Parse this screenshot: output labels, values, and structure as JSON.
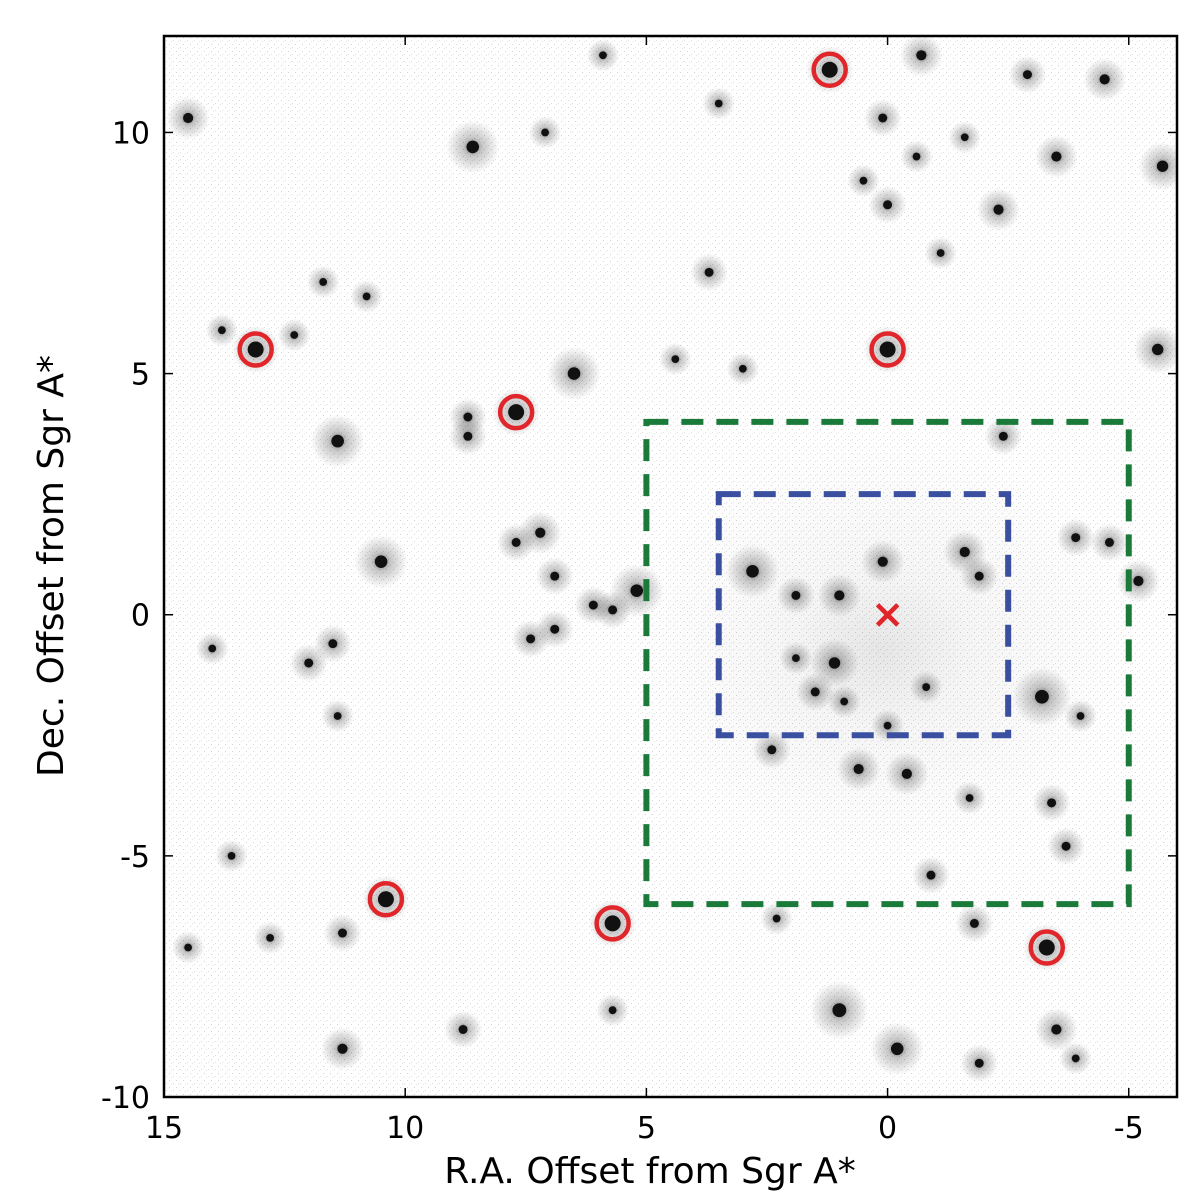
{
  "chart_data": {
    "type": "scatter",
    "title": "",
    "xlabel": "R.A. Offset from Sgr A*",
    "ylabel": "Dec. Offset from Sgr A*",
    "xlim": [
      15,
      -6
    ],
    "ylim": [
      -10,
      12
    ],
    "x_ticks": [
      15,
      10,
      5,
      0,
      -5
    ],
    "y_ticks": [
      -10,
      -5,
      0,
      5,
      10
    ],
    "x_tick_labels": [
      "15",
      "10",
      "5",
      "0",
      "-5"
    ],
    "y_tick_labels": [
      "-10",
      "-5",
      "0",
      "5",
      "10"
    ],
    "grid": false,
    "colors": {
      "circle": "#e0262b",
      "marker": "#e0262b",
      "green_box": "#1a7a3a",
      "blue_box": "#3a4fa0",
      "star": "#111111"
    },
    "circled_stars": [
      {
        "x": 13.1,
        "y": 5.5
      },
      {
        "x": 7.7,
        "y": 4.2
      },
      {
        "x": 1.2,
        "y": 11.3
      },
      {
        "x": 0.0,
        "y": 5.5
      },
      {
        "x": 10.4,
        "y": -5.9
      },
      {
        "x": 5.7,
        "y": -6.4
      },
      {
        "x": -3.3,
        "y": -6.9
      }
    ],
    "sgr_a_marker": {
      "x": 0.0,
      "y": 0.0,
      "symbol": "×"
    },
    "green_box": {
      "x1": 5.0,
      "x2": -5.0,
      "y1": -6.0,
      "y2": 4.0
    },
    "blue_box": {
      "x1": 3.5,
      "x2": -2.5,
      "y1": -2.5,
      "y2": 2.5
    },
    "stars": [
      {
        "x": 14.5,
        "y": 10.3,
        "m": 0.6
      },
      {
        "x": 8.6,
        "y": 9.7,
        "m": 0.8
      },
      {
        "x": 7.1,
        "y": 10.0,
        "m": 0.4
      },
      {
        "x": 5.9,
        "y": 11.6,
        "m": 0.4
      },
      {
        "x": 3.5,
        "y": 10.6,
        "m": 0.4
      },
      {
        "x": 0.1,
        "y": 10.3,
        "m": 0.5
      },
      {
        "x": -0.6,
        "y": 9.5,
        "m": 0.4
      },
      {
        "x": -1.6,
        "y": 9.9,
        "m": 0.4
      },
      {
        "x": -3.5,
        "y": 9.5,
        "m": 0.6
      },
      {
        "x": -5.7,
        "y": 9.3,
        "m": 0.7
      },
      {
        "x": -0.7,
        "y": 11.6,
        "m": 0.6
      },
      {
        "x": -2.9,
        "y": 11.2,
        "m": 0.5
      },
      {
        "x": -4.5,
        "y": 11.1,
        "m": 0.6
      },
      {
        "x": 0.5,
        "y": 9.0,
        "m": 0.4
      },
      {
        "x": 0.0,
        "y": 8.5,
        "m": 0.5
      },
      {
        "x": -2.3,
        "y": 8.4,
        "m": 0.6
      },
      {
        "x": -1.1,
        "y": 7.5,
        "m": 0.4
      },
      {
        "x": 3.7,
        "y": 7.1,
        "m": 0.5
      },
      {
        "x": 11.7,
        "y": 6.9,
        "m": 0.4
      },
      {
        "x": 10.8,
        "y": 6.6,
        "m": 0.4
      },
      {
        "x": 6.5,
        "y": 5.0,
        "m": 0.8
      },
      {
        "x": 4.4,
        "y": 5.3,
        "m": 0.4
      },
      {
        "x": 8.7,
        "y": 4.1,
        "m": 0.5
      },
      {
        "x": 8.7,
        "y": 3.7,
        "m": 0.5
      },
      {
        "x": 11.4,
        "y": 3.6,
        "m": 0.8
      },
      {
        "x": 10.5,
        "y": 1.1,
        "m": 0.8
      },
      {
        "x": 7.2,
        "y": 1.7,
        "m": 0.6
      },
      {
        "x": 7.7,
        "y": 1.5,
        "m": 0.5
      },
      {
        "x": 6.9,
        "y": 0.8,
        "m": 0.5
      },
      {
        "x": 5.2,
        "y": 0.5,
        "m": 0.8
      },
      {
        "x": 5.7,
        "y": 0.1,
        "m": 0.5
      },
      {
        "x": 6.1,
        "y": 0.2,
        "m": 0.5
      },
      {
        "x": 7.4,
        "y": -0.5,
        "m": 0.5
      },
      {
        "x": 6.9,
        "y": -0.3,
        "m": 0.5
      },
      {
        "x": 11.5,
        "y": -0.6,
        "m": 0.5
      },
      {
        "x": 12.0,
        "y": -1.0,
        "m": 0.5
      },
      {
        "x": 14.0,
        "y": -0.7,
        "m": 0.4
      },
      {
        "x": 11.4,
        "y": -2.1,
        "m": 0.4
      },
      {
        "x": 2.8,
        "y": 0.9,
        "m": 0.8
      },
      {
        "x": 1.9,
        "y": 0.4,
        "m": 0.5
      },
      {
        "x": 1.0,
        "y": 0.4,
        "m": 0.6
      },
      {
        "x": 0.1,
        "y": 1.1,
        "m": 0.6
      },
      {
        "x": -1.6,
        "y": 1.3,
        "m": 0.6
      },
      {
        "x": -1.9,
        "y": 0.8,
        "m": 0.5
      },
      {
        "x": -5.2,
        "y": 0.7,
        "m": 0.6
      },
      {
        "x": -4.6,
        "y": 1.5,
        "m": 0.5
      },
      {
        "x": 1.1,
        "y": -1.0,
        "m": 0.7
      },
      {
        "x": 1.9,
        "y": -0.9,
        "m": 0.4
      },
      {
        "x": 1.5,
        "y": -1.6,
        "m": 0.5
      },
      {
        "x": 0.9,
        "y": -1.8,
        "m": 0.4
      },
      {
        "x": -0.8,
        "y": -1.5,
        "m": 0.4
      },
      {
        "x": 0.0,
        "y": -2.3,
        "m": 0.4
      },
      {
        "x": -3.2,
        "y": -1.7,
        "m": 0.9
      },
      {
        "x": -4.0,
        "y": -2.1,
        "m": 0.4
      },
      {
        "x": 2.4,
        "y": -2.8,
        "m": 0.5
      },
      {
        "x": 0.6,
        "y": -3.2,
        "m": 0.6
      },
      {
        "x": -0.4,
        "y": -3.3,
        "m": 0.6
      },
      {
        "x": -3.4,
        "y": -3.9,
        "m": 0.5
      },
      {
        "x": -3.7,
        "y": -4.8,
        "m": 0.5
      },
      {
        "x": -1.7,
        "y": -3.8,
        "m": 0.4
      },
      {
        "x": -0.9,
        "y": -5.4,
        "m": 0.5
      },
      {
        "x": 13.6,
        "y": -5.0,
        "m": 0.4
      },
      {
        "x": 11.3,
        "y": -6.6,
        "m": 0.5
      },
      {
        "x": 12.8,
        "y": -6.7,
        "m": 0.4
      },
      {
        "x": 14.5,
        "y": -6.9,
        "m": 0.4
      },
      {
        "x": 2.3,
        "y": -6.3,
        "m": 0.4
      },
      {
        "x": -1.8,
        "y": -6.4,
        "m": 0.5
      },
      {
        "x": 1.0,
        "y": -8.2,
        "m": 0.9
      },
      {
        "x": -0.2,
        "y": -9.0,
        "m": 0.8
      },
      {
        "x": -3.5,
        "y": -8.6,
        "m": 0.6
      },
      {
        "x": -3.9,
        "y": -9.2,
        "m": 0.4
      },
      {
        "x": -1.9,
        "y": -9.3,
        "m": 0.5
      },
      {
        "x": 11.3,
        "y": -9.0,
        "m": 0.6
      },
      {
        "x": 8.8,
        "y": -8.6,
        "m": 0.5
      },
      {
        "x": 5.7,
        "y": -8.2,
        "m": 0.4
      },
      {
        "x": -5.6,
        "y": 5.5,
        "m": 0.7
      },
      {
        "x": -2.4,
        "y": 3.7,
        "m": 0.5
      },
      {
        "x": 13.8,
        "y": 5.9,
        "m": 0.4
      },
      {
        "x": 12.3,
        "y": 5.8,
        "m": 0.4
      },
      {
        "x": 3.0,
        "y": 5.1,
        "m": 0.4
      },
      {
        "x": -3.9,
        "y": 1.6,
        "m": 0.5
      }
    ]
  }
}
